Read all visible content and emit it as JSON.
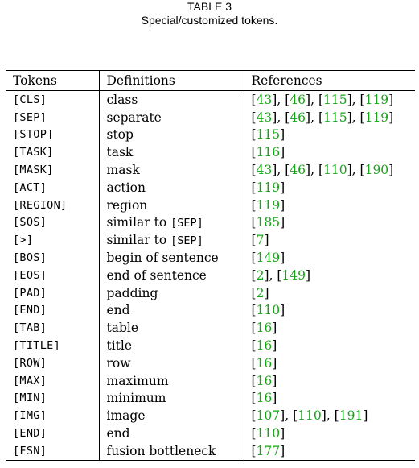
{
  "caption": {
    "label": "TABLE 3",
    "title": "Special/customized tokens."
  },
  "table": {
    "headers": [
      "Tokens",
      "Definitions",
      "References"
    ],
    "rows": [
      {
        "token": "[CLS]",
        "definition": "class",
        "refs": [
          "43",
          "46",
          "115",
          "119"
        ]
      },
      {
        "token": "[SEP]",
        "definition": "separate",
        "refs": [
          "43",
          "46",
          "115",
          "119"
        ]
      },
      {
        "token": "[STOP]",
        "definition": "stop",
        "refs": [
          "115"
        ]
      },
      {
        "token": "[TASK]",
        "definition": "task",
        "refs": [
          "116"
        ]
      },
      {
        "token": "[MASK]",
        "definition": "mask",
        "refs": [
          "43",
          "46",
          "110",
          "190"
        ]
      },
      {
        "token": "[ACT]",
        "definition": "action",
        "refs": [
          "119"
        ]
      },
      {
        "token": "[REGION]",
        "definition": "region",
        "refs": [
          "119"
        ]
      },
      {
        "token": "[SOS]",
        "definition": "similar to ",
        "definition_token": "[SEP]",
        "refs": [
          "185"
        ]
      },
      {
        "token": "[>]",
        "definition": "similar to ",
        "definition_token": "[SEP]",
        "refs": [
          "7"
        ]
      },
      {
        "token": "[BOS]",
        "definition": "begin of sentence",
        "refs": [
          "149"
        ]
      },
      {
        "token": "[EOS]",
        "definition": "end of sentence",
        "refs": [
          "2",
          "149"
        ]
      },
      {
        "token": "[PAD]",
        "definition": "padding",
        "refs": [
          "2"
        ]
      },
      {
        "token": "[END]",
        "definition": "end",
        "refs": [
          "110"
        ]
      },
      {
        "token": "[TAB]",
        "definition": "table",
        "refs": [
          "16"
        ]
      },
      {
        "token": "[TITLE]",
        "definition": "title",
        "refs": [
          "16"
        ]
      },
      {
        "token": "[ROW]",
        "definition": "row",
        "refs": [
          "16"
        ]
      },
      {
        "token": "[MAX]",
        "definition": "maximum",
        "refs": [
          "16"
        ]
      },
      {
        "token": "[MIN]",
        "definition": "minimum",
        "refs": [
          "16"
        ]
      },
      {
        "token": "[IMG]",
        "definition": "image",
        "refs": [
          "107",
          "110",
          "191"
        ]
      },
      {
        "token": "[END]",
        "definition": "end",
        "refs": [
          "110"
        ]
      },
      {
        "token": "[FSN]",
        "definition": "fusion bottleneck",
        "refs": [
          "177"
        ]
      }
    ]
  },
  "colors": {
    "link": "#19a219",
    "text": "#000000"
  }
}
